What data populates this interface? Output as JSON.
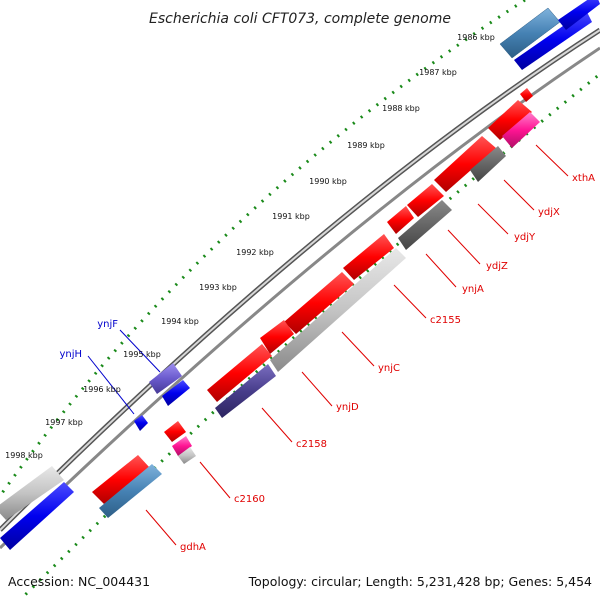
{
  "title": "Escherichia coli CFT073, complete genome",
  "footer": {
    "accession": "Accession: NC_004431",
    "summary": "Topology: circular; Length: 5,231,428 bp; Genes: 5,454"
  },
  "ticks": [
    "1986 kbp",
    "1987 kbp",
    "1988 kbp",
    "1989 kbp",
    "1990 kbp",
    "1991 kbp",
    "1992 kbp",
    "1993 kbp",
    "1994 kbp",
    "1995 kbp",
    "1996 kbp",
    "1997 kbp",
    "1998 kbp"
  ],
  "genes_reverse": [
    "xthA",
    "ydjX",
    "ydjY",
    "ydjZ",
    "ynjA",
    "c2155",
    "ynjC",
    "ynjD",
    "c2158",
    "c2160",
    "gdhA"
  ],
  "genes_forward": [
    "ynjF",
    "ynjH"
  ],
  "colors": {
    "reverse_label": "#e00000",
    "forward_label": "#0000cc",
    "tick_dots": "#1a8a1a",
    "backbone": "#8c8c8c"
  }
}
